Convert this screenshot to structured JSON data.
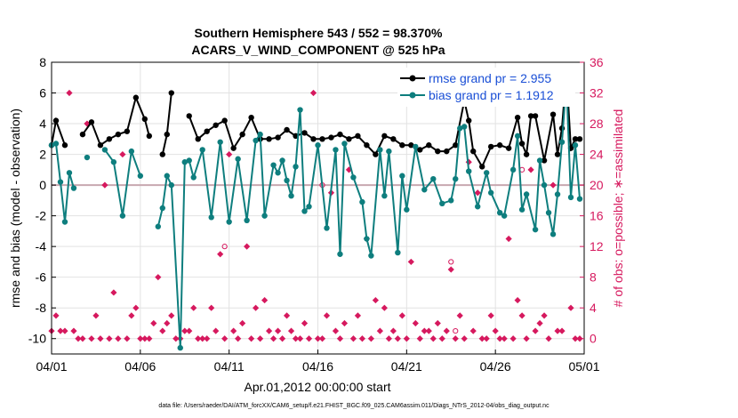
{
  "chart_data": {
    "type": "line",
    "title": "Southern Hemisphere 543 / 552 = 98.370%",
    "subtitle": "ACARS_V_WIND_COMPONENT @ 525 hPa",
    "xlabel": "Apr.01,2012 00:00:00 start",
    "ylabel": "rmse and bias (model - observation)",
    "y2label": "# of obs: o=possible; ∗=assimilated",
    "x_ticks": [
      "04/01",
      "04/06",
      "04/11",
      "04/16",
      "04/21",
      "04/26",
      "05/01"
    ],
    "xlim": [
      0,
      30
    ],
    "ylim": [
      -11,
      8
    ],
    "y_ticks": [
      -10,
      -8,
      -6,
      -4,
      -2,
      0,
      2,
      4,
      6,
      8
    ],
    "y2lim": [
      -2,
      36
    ],
    "y2_ticks": [
      0,
      4,
      8,
      12,
      16,
      20,
      24,
      28,
      32,
      36
    ],
    "grid": true,
    "legend_position": "top-right",
    "series": [
      {
        "name": "rmse grand pr = 2.955",
        "color": "#000000",
        "points": [
          [
            0,
            2.6
          ],
          [
            0.25,
            4.2
          ],
          [
            0.75,
            2.6
          ],
          [
            1.75,
            3.3
          ],
          [
            2.25,
            4.1
          ],
          [
            2.75,
            2.6
          ],
          [
            3.25,
            3.0
          ],
          [
            3.75,
            3.3
          ],
          [
            4.25,
            3.5
          ],
          [
            4.75,
            5.7
          ],
          [
            5.25,
            4.3
          ],
          [
            5.5,
            3.2
          ],
          [
            6.25,
            2.0
          ],
          [
            6.5,
            3.3
          ],
          [
            6.75,
            6.0
          ],
          [
            7.75,
            4.5
          ],
          [
            8.25,
            3.0
          ],
          [
            8.75,
            3.5
          ],
          [
            9.25,
            3.9
          ],
          [
            9.75,
            4.2
          ],
          [
            10.25,
            2.4
          ],
          [
            10.75,
            3.3
          ],
          [
            11.25,
            4.4
          ],
          [
            11.75,
            3.0
          ],
          [
            12.25,
            3.0
          ],
          [
            12.75,
            3.1
          ],
          [
            13.25,
            3.6
          ],
          [
            13.75,
            3.2
          ],
          [
            14.25,
            3.4
          ],
          [
            14.75,
            3.0
          ],
          [
            15.25,
            3.0
          ],
          [
            15.75,
            3.1
          ],
          [
            16.25,
            3.3
          ],
          [
            16.75,
            3.0
          ],
          [
            17.25,
            3.2
          ],
          [
            17.75,
            2.6
          ],
          [
            18.25,
            2.0
          ],
          [
            18.75,
            3.2
          ],
          [
            19.25,
            3.0
          ],
          [
            19.75,
            2.6
          ],
          [
            20.25,
            2.6
          ],
          [
            20.75,
            2.3
          ],
          [
            21.25,
            2.6
          ],
          [
            21.75,
            2.2
          ],
          [
            22.25,
            2.2
          ],
          [
            22.75,
            2.6
          ],
          [
            23.25,
            5.5
          ],
          [
            23.5,
            4.2
          ],
          [
            23.75,
            2.2
          ],
          [
            24.25,
            1.2
          ],
          [
            24.75,
            2.5
          ],
          [
            25.25,
            2.6
          ],
          [
            25.75,
            2.4
          ],
          [
            26.25,
            4.4
          ],
          [
            26.5,
            2.7
          ],
          [
            26.75,
            2.0
          ],
          [
            27.0,
            4.5
          ],
          [
            27.25,
            4.5
          ],
          [
            27.75,
            1.6
          ],
          [
            28.25,
            4.6
          ],
          [
            28.5,
            2.0
          ],
          [
            28.75,
            3.7
          ],
          [
            29.0,
            7.4
          ],
          [
            29.25,
            2.4
          ],
          [
            29.5,
            3.0
          ],
          [
            29.75,
            3.0
          ]
        ]
      },
      {
        "name": "bias grand pr = 1.1912",
        "color": "#0e7e7e",
        "points": [
          [
            0,
            2.6
          ],
          [
            0.25,
            2.7
          ],
          [
            0.5,
            0.2
          ],
          [
            0.75,
            -2.4
          ],
          [
            1.0,
            0.8
          ],
          [
            1.25,
            -0.2
          ],
          [
            2.0,
            1.8
          ],
          [
            3.0,
            2.3
          ],
          [
            3.5,
            1.5
          ],
          [
            4.0,
            -2.0
          ],
          [
            4.5,
            2.2
          ],
          [
            5.0,
            0.6
          ],
          [
            6.0,
            -2.7
          ],
          [
            6.25,
            -1.5
          ],
          [
            6.5,
            0.6
          ],
          [
            6.75,
            0.0
          ],
          [
            7.25,
            -10.6
          ],
          [
            7.5,
            1.5
          ],
          [
            7.75,
            1.6
          ],
          [
            8.0,
            0.5
          ],
          [
            8.5,
            2.3
          ],
          [
            9.0,
            -2.1
          ],
          [
            9.5,
            2.8
          ],
          [
            10.0,
            -2.4
          ],
          [
            10.5,
            1.7
          ],
          [
            11.0,
            -2.3
          ],
          [
            11.5,
            2.9
          ],
          [
            11.75,
            3.3
          ],
          [
            12.0,
            -2.0
          ],
          [
            12.5,
            1.3
          ],
          [
            12.75,
            0.8
          ],
          [
            13.0,
            1.6
          ],
          [
            13.25,
            0.3
          ],
          [
            13.5,
            -0.7
          ],
          [
            13.75,
            1.2
          ],
          [
            14.0,
            4.9
          ],
          [
            14.25,
            -1.7
          ],
          [
            14.5,
            -1.4
          ],
          [
            15.0,
            2.6
          ],
          [
            15.5,
            -2.8
          ],
          [
            16.0,
            2.3
          ],
          [
            16.25,
            -4.5
          ],
          [
            16.5,
            2.7
          ],
          [
            17.0,
            0.5
          ],
          [
            17.5,
            -1.1
          ],
          [
            17.75,
            -3.5
          ],
          [
            18.0,
            -4.6
          ],
          [
            18.5,
            2.3
          ],
          [
            18.75,
            -0.7
          ],
          [
            19.0,
            2.2
          ],
          [
            19.5,
            -4.4
          ],
          [
            19.75,
            0.6
          ],
          [
            20.0,
            -1.6
          ],
          [
            20.5,
            2.5
          ],
          [
            21.0,
            -0.3
          ],
          [
            21.5,
            0.4
          ],
          [
            22.0,
            -1.2
          ],
          [
            22.5,
            -1.0
          ],
          [
            22.75,
            0.4
          ],
          [
            23.0,
            3.7
          ],
          [
            23.25,
            3.8
          ],
          [
            23.5,
            0.9
          ],
          [
            24.0,
            -1.4
          ],
          [
            24.5,
            0.8
          ],
          [
            24.75,
            -0.5
          ],
          [
            25.25,
            -1.8
          ],
          [
            25.5,
            -2.0
          ],
          [
            26.0,
            1.0
          ],
          [
            26.25,
            3.2
          ],
          [
            26.5,
            -1.6
          ],
          [
            26.75,
            -0.6
          ],
          [
            27.25,
            -2.9
          ],
          [
            27.5,
            1.6
          ],
          [
            27.75,
            0.0
          ],
          [
            28.0,
            -1.8
          ],
          [
            28.25,
            -3.2
          ],
          [
            28.5,
            -0.6
          ],
          [
            28.75,
            2.8
          ],
          [
            29.0,
            6.7
          ],
          [
            29.25,
            -0.8
          ],
          [
            29.5,
            2.6
          ],
          [
            29.75,
            -0.9
          ]
        ]
      }
    ],
    "obs_assimilated": [
      [
        0,
        1
      ],
      [
        0.25,
        3
      ],
      [
        0.5,
        1
      ],
      [
        0.75,
        1
      ],
      [
        1,
        32
      ],
      [
        1.25,
        1
      ],
      [
        1.5,
        0
      ],
      [
        1.75,
        0
      ],
      [
        2,
        28
      ],
      [
        2.25,
        0
      ],
      [
        2.5,
        3
      ],
      [
        2.75,
        0
      ],
      [
        3.0,
        20
      ],
      [
        3.25,
        0
      ],
      [
        3.5,
        6
      ],
      [
        3.75,
        0
      ],
      [
        4.0,
        24
      ],
      [
        4.25,
        0
      ],
      [
        4.5,
        3
      ],
      [
        4.75,
        4
      ],
      [
        5.0,
        0
      ],
      [
        5.25,
        0
      ],
      [
        5.5,
        0
      ],
      [
        5.75,
        2
      ],
      [
        6.0,
        8
      ],
      [
        6.25,
        1
      ],
      [
        6.5,
        2
      ],
      [
        6.75,
        3
      ],
      [
        7.0,
        0
      ],
      [
        7.25,
        0
      ],
      [
        7.5,
        1
      ],
      [
        7.75,
        1
      ],
      [
        8.0,
        4
      ],
      [
        8.25,
        0
      ],
      [
        8.5,
        0
      ],
      [
        8.75,
        0
      ],
      [
        9.0,
        4
      ],
      [
        9.25,
        1
      ],
      [
        9.5,
        11
      ],
      [
        9.75,
        0
      ],
      [
        10.0,
        24
      ],
      [
        10.25,
        1
      ],
      [
        10.5,
        0
      ],
      [
        10.75,
        2
      ],
      [
        11.0,
        12
      ],
      [
        11.25,
        0
      ],
      [
        11.5,
        4
      ],
      [
        11.75,
        0
      ],
      [
        12.0,
        5
      ],
      [
        12.25,
        1
      ],
      [
        12.5,
        0
      ],
      [
        12.75,
        1
      ],
      [
        13.0,
        0
      ],
      [
        13.25,
        3
      ],
      [
        13.5,
        1
      ],
      [
        13.75,
        0
      ],
      [
        14.0,
        0
      ],
      [
        14.25,
        2
      ],
      [
        14.5,
        0
      ],
      [
        14.75,
        32
      ],
      [
        15.0,
        0
      ],
      [
        15.25,
        0
      ],
      [
        15.5,
        3
      ],
      [
        15.75,
        19
      ],
      [
        16.0,
        1
      ],
      [
        16.25,
        0
      ],
      [
        16.5,
        2
      ],
      [
        16.75,
        22
      ],
      [
        17.0,
        0
      ],
      [
        17.25,
        3
      ],
      [
        17.5,
        0
      ],
      [
        17.75,
        13
      ],
      [
        18.0,
        0
      ],
      [
        18.25,
        5
      ],
      [
        18.5,
        1
      ],
      [
        18.75,
        4
      ],
      [
        19.0,
        0
      ],
      [
        19.25,
        1
      ],
      [
        19.5,
        0
      ],
      [
        19.75,
        3
      ],
      [
        20.0,
        0
      ],
      [
        20.25,
        10
      ],
      [
        20.5,
        2
      ],
      [
        20.75,
        0
      ],
      [
        21.0,
        1
      ],
      [
        21.25,
        1
      ],
      [
        21.5,
        0
      ],
      [
        21.75,
        2
      ],
      [
        22.0,
        0
      ],
      [
        22.25,
        1
      ],
      [
        22.5,
        9
      ],
      [
        22.75,
        0
      ],
      [
        23.0,
        3
      ],
      [
        23.25,
        0
      ],
      [
        23.5,
        23
      ],
      [
        23.75,
        1
      ],
      [
        24.0,
        19
      ],
      [
        24.25,
        0
      ],
      [
        24.5,
        0
      ],
      [
        24.75,
        3
      ],
      [
        25.0,
        1
      ],
      [
        25.25,
        0
      ],
      [
        25.5,
        0
      ],
      [
        25.75,
        13
      ],
      [
        26.0,
        0
      ],
      [
        26.25,
        5
      ],
      [
        26.5,
        3
      ],
      [
        26.75,
        0
      ],
      [
        27.0,
        22
      ],
      [
        27.25,
        1
      ],
      [
        27.5,
        2
      ],
      [
        27.75,
        3
      ],
      [
        28.0,
        0
      ],
      [
        28.25,
        20
      ],
      [
        28.5,
        1
      ],
      [
        28.75,
        1
      ],
      [
        29.0,
        31
      ],
      [
        29.25,
        4
      ],
      [
        29.5,
        0
      ],
      [
        29.75,
        0
      ]
    ],
    "obs_possible": [
      [
        9.75,
        12
      ],
      [
        15.25,
        20
      ],
      [
        22.5,
        10
      ],
      [
        22.75,
        1
      ],
      [
        26.5,
        22
      ]
    ]
  },
  "footer_text": "data file: /Users/raeder/DAI/ATM_forcXX/CAM6_setup/f.e21.FHIST_BGC.f09_025.CAM6assim.011/Diags_NTrS_2012-04/obs_diag_output.nc",
  "colors": {
    "rmse": "#000000",
    "bias": "#0e7e7e",
    "obs": "#d6195e",
    "legend_text": "#1a4fd6",
    "zero_line": "#c8a8b0"
  }
}
